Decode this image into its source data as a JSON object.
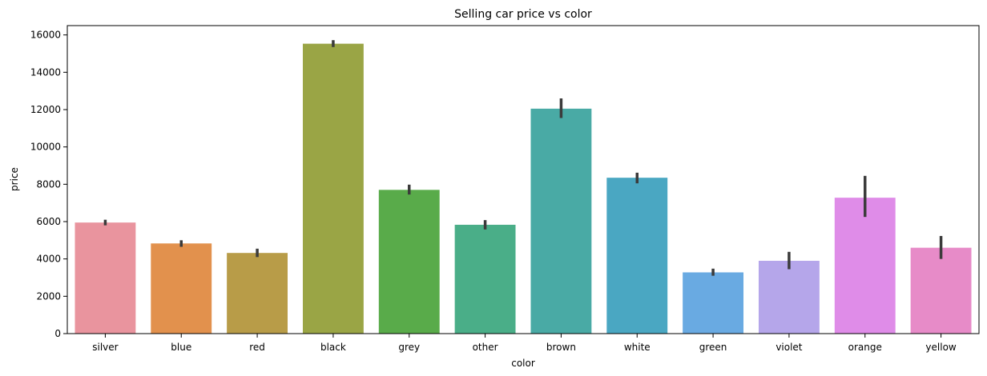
{
  "chart_data": {
    "type": "bar",
    "title": "Selling car price vs color",
    "xlabel": "color",
    "ylabel": "price",
    "ylim": [
      0,
      16500
    ],
    "yticks": [
      0,
      2000,
      4000,
      6000,
      8000,
      10000,
      12000,
      14000,
      16000
    ],
    "ytick_labels": [
      "0",
      "2000",
      "4000",
      "6000",
      "8000",
      "10000",
      "12000",
      "14000",
      "16000"
    ],
    "grid": false,
    "categories": [
      "silver",
      "blue",
      "red",
      "black",
      "grey",
      "other",
      "brown",
      "white",
      "green",
      "violet",
      "orange",
      "yellow"
    ],
    "values": [
      5950,
      4830,
      4320,
      15530,
      7700,
      5830,
      12050,
      8350,
      3280,
      3900,
      7280,
      4600
    ],
    "error_low": [
      5800,
      4650,
      4100,
      15350,
      7450,
      5580,
      11550,
      8050,
      3100,
      3450,
      6250,
      4000
    ],
    "error_high": [
      6100,
      5000,
      4550,
      15720,
      7980,
      6080,
      12600,
      8620,
      3480,
      4380,
      8450,
      5230
    ],
    "colors": [
      "#e9949e",
      "#e2914d",
      "#b89c48",
      "#9aa545",
      "#59ab4a",
      "#4aae88",
      "#49aaa5",
      "#4aa7c2",
      "#69aae2",
      "#b5a6ea",
      "#df8ce8",
      "#e78bc8"
    ],
    "error_color": "#3b3b3b"
  }
}
